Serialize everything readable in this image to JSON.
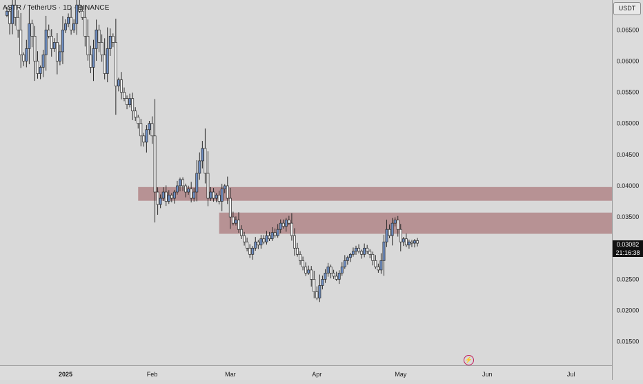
{
  "header": {
    "symbol_title": "ASTR / TetherUS · 1D · BINANCE"
  },
  "price_axis": {
    "currency": "USDT",
    "last_price": "0.03082",
    "countdown": "21:16:38"
  },
  "icons": {
    "lightning": "lightning-icon"
  },
  "colors": {
    "candle_up": "#6f8fc4",
    "candle_down": "#f2f2f2",
    "wick": "#2a2a2a",
    "zone": "#b38a8c"
  },
  "chart_data": {
    "type": "candlestick",
    "title": "ASTR / TetherUS · 1D · BINANCE",
    "ylim": [
      0.0112,
      0.0698
    ],
    "y_ticks": [
      "0.06500",
      "0.06000",
      "0.05500",
      "0.05000",
      "0.04500",
      "0.04000",
      "0.03500",
      "0.03000",
      "0.02500",
      "0.02000",
      "0.01500"
    ],
    "x_ticks": [
      {
        "label": "2025",
        "day": 0
      },
      {
        "label": "Feb",
        "day": 31
      },
      {
        "label": "Mar",
        "day": 59
      },
      {
        "label": "Apr",
        "day": 90
      },
      {
        "label": "May",
        "day": 120
      },
      {
        "label": "Jun",
        "day": 151
      },
      {
        "label": "Jul",
        "day": 181
      }
    ],
    "x_start_day": -21,
    "zones": [
      {
        "from": 0.0376,
        "to": 0.0398,
        "start_day": 26
      },
      {
        "from": 0.0323,
        "to": 0.0357,
        "start_day": 55
      }
    ],
    "closes": [
      0.068,
      0.066,
      0.069,
      0.067,
      0.065,
      0.061,
      0.06,
      0.062,
      0.066,
      0.064,
      0.06,
      0.058,
      0.059,
      0.061,
      0.065,
      0.064,
      0.062,
      0.063,
      0.06,
      0.0615,
      0.065,
      0.066,
      0.067,
      0.065,
      0.066,
      0.069,
      0.068,
      0.067,
      0.064,
      0.061,
      0.059,
      0.062,
      0.065,
      0.063,
      0.061,
      0.058,
      0.062,
      0.064,
      0.063,
      0.056,
      0.057,
      0.055,
      0.054,
      0.053,
      0.054,
      0.052,
      0.051,
      0.05,
      0.048,
      0.047,
      0.049,
      0.05,
      0.048,
      0.039,
      0.037,
      0.038,
      0.039,
      0.0375,
      0.0385,
      0.038,
      0.039,
      0.04,
      0.041,
      0.04,
      0.039,
      0.0395,
      0.038,
      0.039,
      0.042,
      0.044,
      0.046,
      0.042,
      0.038,
      0.039,
      0.038,
      0.0385,
      0.0375,
      0.0395,
      0.04,
      0.038,
      0.035,
      0.034,
      0.0345,
      0.033,
      0.032,
      0.031,
      0.03,
      0.029,
      0.03,
      0.031,
      0.0305,
      0.0315,
      0.031,
      0.032,
      0.0315,
      0.0325,
      0.032,
      0.033,
      0.034,
      0.0335,
      0.0345,
      0.034,
      0.032,
      0.03,
      0.029,
      0.028,
      0.027,
      0.026,
      0.0265,
      0.025,
      0.023,
      0.022,
      0.024,
      0.025,
      0.026,
      0.027,
      0.026,
      0.0255,
      0.025,
      0.026,
      0.027,
      0.028,
      0.0285,
      0.029,
      0.0295,
      0.03,
      0.0295,
      0.029,
      0.03,
      0.0295,
      0.029,
      0.028,
      0.027,
      0.0265,
      0.028,
      0.031,
      0.033,
      0.032,
      0.034,
      0.0345,
      0.033,
      0.031,
      0.0315,
      0.0305,
      0.031,
      0.0308,
      0.0312,
      0.0308
    ]
  }
}
